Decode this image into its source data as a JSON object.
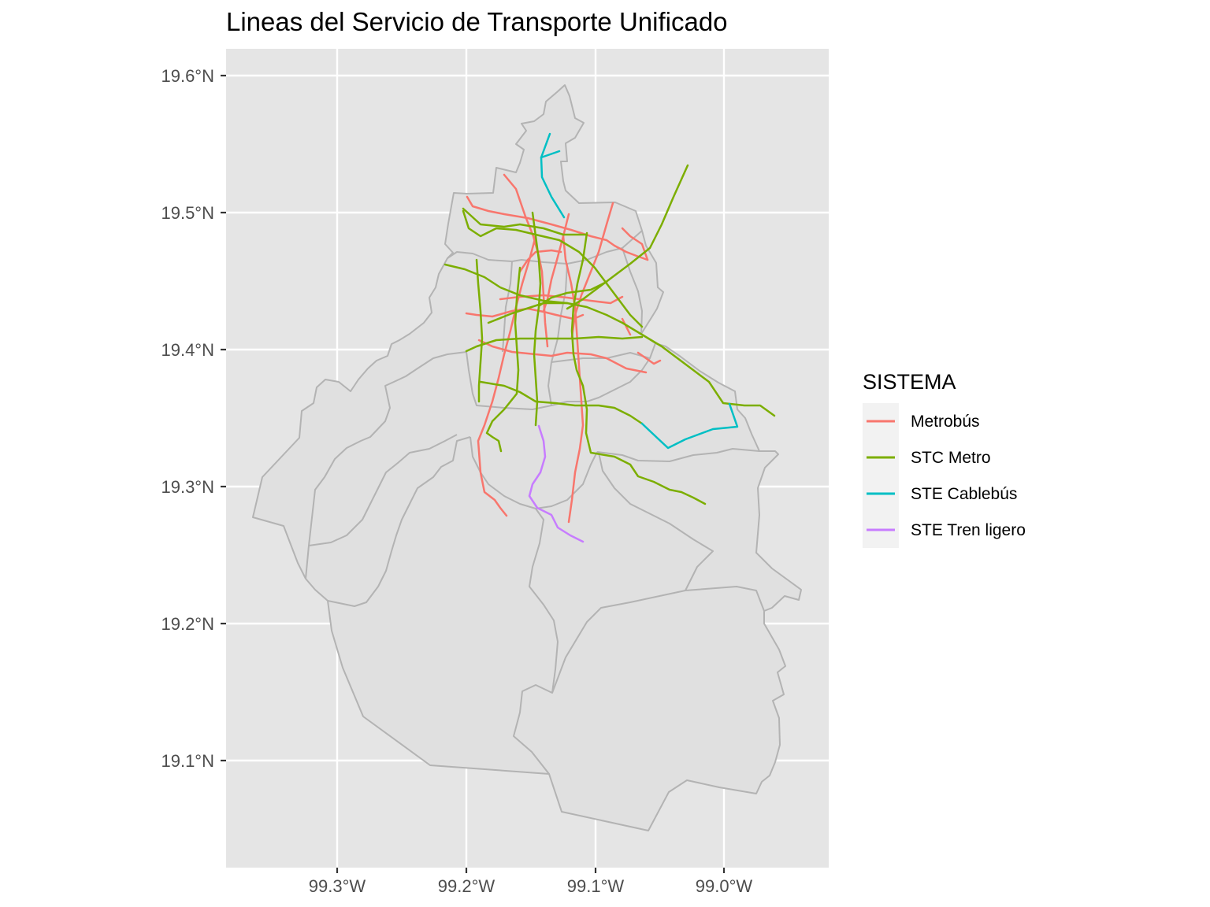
{
  "title": "Lineas del Servicio de Transporte Unificado",
  "axes": {
    "x_ticks": [
      "99.3°W",
      "99.2°W",
      "99.1°W",
      "99.0°W"
    ],
    "y_ticks": [
      "19.6°N",
      "19.5°N",
      "19.4°N",
      "19.3°N",
      "19.2°N",
      "19.1°N"
    ]
  },
  "legend": {
    "title": "SISTEMA",
    "placement": "right",
    "items": [
      {
        "label": "Metrobús",
        "color": "#F8766D"
      },
      {
        "label": "STC Metro",
        "color": "#7CAE00"
      },
      {
        "label": "STE Cablebús",
        "color": "#00BFC4"
      },
      {
        "label": "STE Tren ligero",
        "color": "#C77CFF"
      }
    ]
  },
  "colors": {
    "panel": "#E5E5E5",
    "grid": "#FFFFFF",
    "land": "#E0E0E0",
    "boundary": "#B3B3B3"
  }
}
